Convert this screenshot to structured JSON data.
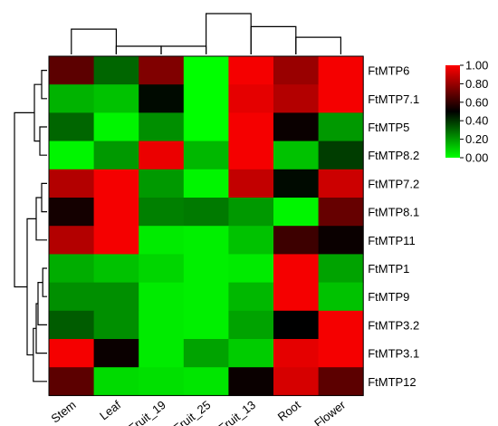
{
  "chart_data": {
    "type": "heatmap",
    "columns": [
      "Stem",
      "Leaf",
      "Fruit_19",
      "Fruit_25",
      "Fruit_13",
      "Root",
      "Flower"
    ],
    "rows": [
      "FtMTP6",
      "FtMTP7.1",
      "FtMTP5",
      "FtMTP8.2",
      "FtMTP7.2",
      "FtMTP8.1",
      "FtMTP11",
      "FtMTP1",
      "FtMTP9",
      "FtMTP3.2",
      "FtMTP3.1",
      "FtMTP12"
    ],
    "values": [
      [
        0.68,
        0.3,
        0.75,
        0.0,
        0.98,
        0.8,
        0.98
      ],
      [
        0.15,
        0.12,
        0.48,
        0.0,
        0.95,
        0.85,
        0.98
      ],
      [
        0.3,
        0.02,
        0.22,
        0.0,
        0.98,
        0.52,
        0.2
      ],
      [
        0.02,
        0.2,
        0.96,
        0.14,
        0.98,
        0.12,
        0.38
      ],
      [
        0.85,
        0.98,
        0.2,
        0.02,
        0.88,
        0.48,
        0.9
      ],
      [
        0.54,
        0.98,
        0.25,
        0.26,
        0.2,
        0.02,
        0.7
      ],
      [
        0.85,
        0.98,
        0.04,
        0.03,
        0.12,
        0.62,
        0.52
      ],
      [
        0.16,
        0.12,
        0.08,
        0.03,
        0.04,
        0.98,
        0.18
      ],
      [
        0.22,
        0.22,
        0.04,
        0.03,
        0.14,
        0.98,
        0.12
      ],
      [
        0.32,
        0.22,
        0.04,
        0.03,
        0.18,
        0.5,
        0.98
      ],
      [
        0.98,
        0.52,
        0.04,
        0.18,
        0.1,
        0.95,
        0.98
      ],
      [
        0.68,
        0.07,
        0.06,
        0.05,
        0.52,
        0.92,
        0.68
      ]
    ],
    "colorbar": {
      "min": 0.0,
      "max": 1.0,
      "stops": [
        "#00ff00",
        "#000000",
        "#ff0000"
      ],
      "ticks": [
        "0.00",
        "0.20",
        "0.40",
        "0.60",
        "0.80",
        "1.00"
      ]
    },
    "column_dendrogram": {
      "clusters": [
        [
          1,
          2
        ],
        [
          0,
          1
        ],
        [
          2,
          3
        ],
        [
          5,
          6
        ],
        [
          4,
          5
        ],
        [
          3,
          4
        ]
      ]
    },
    "row_dendrogram": {
      "clusters": [
        [
          0,
          1
        ],
        [
          2,
          3
        ],
        [
          12,
          13
        ],
        [
          4,
          5
        ],
        [
          15,
          6
        ],
        [
          7,
          8
        ],
        [
          17,
          9
        ],
        [
          18,
          10
        ],
        [
          19,
          11
        ],
        [
          16,
          20
        ],
        [
          14,
          21
        ]
      ]
    }
  }
}
